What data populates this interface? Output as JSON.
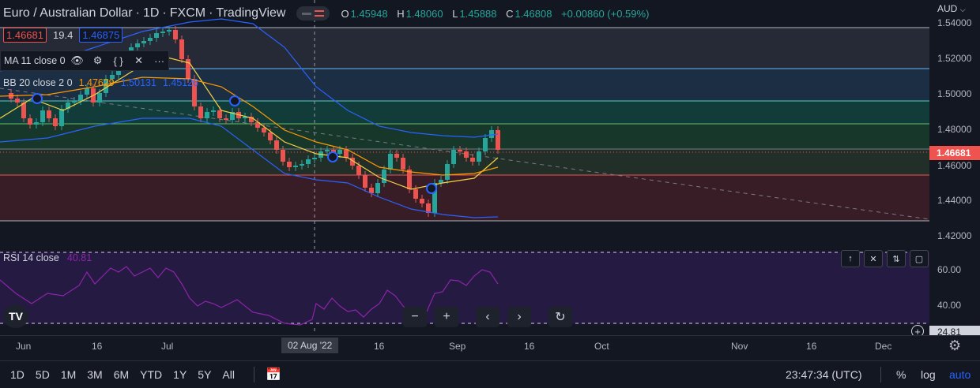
{
  "header": {
    "symbol": "Euro / Australian Dollar",
    "interval": "1D",
    "exchange": "FXCM",
    "source": "TradingView",
    "o_label": "O",
    "o_value": "1.45948",
    "h_label": "H",
    "h_value": "1.48060",
    "l_label": "L",
    "l_value": "1.45888",
    "c_label": "C",
    "c_value": "1.46808",
    "change": "+0.00860 (+0.59%)"
  },
  "quote": {
    "sell": "1.46681",
    "spread": "19.4",
    "buy": "1.46875"
  },
  "indicators": {
    "ma": {
      "label": "MA 11 close 0"
    },
    "bb": {
      "label": "BB 20 close 2 0",
      "basis": "1.47629",
      "upper": "1.50131",
      "lower": "1.45126"
    }
  },
  "price_axis": {
    "currency": "AUD",
    "ticks": [
      "1.54000",
      "1.52000",
      "1.50000",
      "1.48000",
      "1.46000",
      "1.44000",
      "1.42000"
    ],
    "current": "1.46681"
  },
  "rsi": {
    "label": "RSI 14 close",
    "value": "40.81",
    "ticks": [
      "60.00",
      "40.00"
    ],
    "low_label": "24.81"
  },
  "time_axis": {
    "labels": [
      "Jun",
      "16",
      "Jul",
      "16",
      "Sep",
      "16",
      "Oct",
      "Nov",
      "16",
      "Dec"
    ],
    "crosshair": "02 Aug '22"
  },
  "bottom_bar": {
    "ranges": [
      "1D",
      "5D",
      "1M",
      "3M",
      "6M",
      "YTD",
      "1Y",
      "5Y",
      "All"
    ],
    "clock": "23:47:34 (UTC)",
    "percent": "%",
    "log": "log",
    "auto": "auto"
  },
  "colors": {
    "up": "#26a69a",
    "down": "#ef5350",
    "ma": "#f5d142",
    "bb_basis": "#ff9800",
    "bb_band": "#2962ff",
    "rsi": "#8e24aa",
    "accent": "#2962ff"
  }
}
